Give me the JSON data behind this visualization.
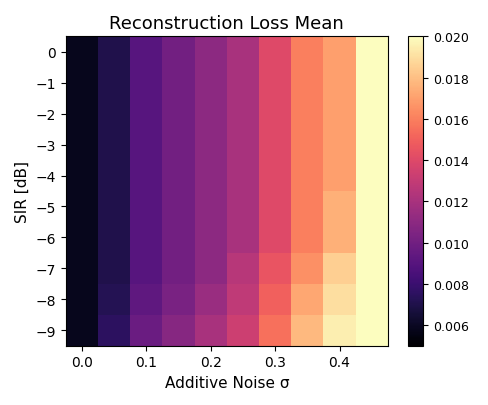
{
  "title": "Reconstruction Loss Mean",
  "xlabel": "Additive Noise σ",
  "ylabel": "SIR [dB]",
  "colormap": "magma",
  "vmin": 0.005,
  "vmax": 0.02,
  "colorbar_ticks": [
    0.006,
    0.008,
    0.01,
    0.012,
    0.014,
    0.016,
    0.018,
    0.02
  ],
  "sigma_values": [
    0.0,
    0.05,
    0.1,
    0.15,
    0.2,
    0.25,
    0.3,
    0.35,
    0.4,
    0.45
  ],
  "sir_values": [
    0,
    -1,
    -2,
    -3,
    -4,
    -5,
    -6,
    -7,
    -8,
    -9
  ],
  "data": [
    [
      0.0058,
      0.007,
      0.009,
      0.01,
      0.011,
      0.012,
      0.014,
      0.016,
      0.017,
      0.02
    ],
    [
      0.0058,
      0.007,
      0.009,
      0.01,
      0.011,
      0.012,
      0.014,
      0.016,
      0.017,
      0.02
    ],
    [
      0.0058,
      0.007,
      0.009,
      0.01,
      0.011,
      0.012,
      0.014,
      0.016,
      0.017,
      0.02
    ],
    [
      0.0058,
      0.007,
      0.009,
      0.01,
      0.011,
      0.012,
      0.014,
      0.016,
      0.017,
      0.02
    ],
    [
      0.0058,
      0.007,
      0.009,
      0.01,
      0.011,
      0.012,
      0.014,
      0.016,
      0.017,
      0.02
    ],
    [
      0.0058,
      0.007,
      0.009,
      0.01,
      0.011,
      0.012,
      0.014,
      0.016,
      0.0175,
      0.02
    ],
    [
      0.0058,
      0.007,
      0.009,
      0.01,
      0.011,
      0.012,
      0.014,
      0.016,
      0.0175,
      0.02
    ],
    [
      0.0058,
      0.007,
      0.009,
      0.01,
      0.011,
      0.0125,
      0.0145,
      0.0165,
      0.0185,
      0.02
    ],
    [
      0.0058,
      0.0072,
      0.0093,
      0.0103,
      0.0115,
      0.0128,
      0.015,
      0.0172,
      0.019,
      0.02
    ],
    [
      0.0058,
      0.0075,
      0.0097,
      0.0108,
      0.012,
      0.0133,
      0.0155,
      0.0178,
      0.0195,
      0.02
    ]
  ],
  "sigma_edges": [
    -0.025,
    0.025,
    0.075,
    0.125,
    0.175,
    0.225,
    0.275,
    0.325,
    0.375,
    0.425,
    0.475
  ],
  "sir_edges": [
    0.5,
    -0.5,
    -1.5,
    -2.5,
    -3.5,
    -4.5,
    -5.5,
    -6.5,
    -7.5,
    -8.5,
    -9.5
  ],
  "xticks": [
    0.0,
    0.1,
    0.2,
    0.3,
    0.4
  ],
  "yticks": [
    0,
    -1,
    -2,
    -3,
    -4,
    -5,
    -6,
    -7,
    -8,
    -9
  ],
  "figsize": [
    4.88,
    4.06
  ],
  "dpi": 100
}
